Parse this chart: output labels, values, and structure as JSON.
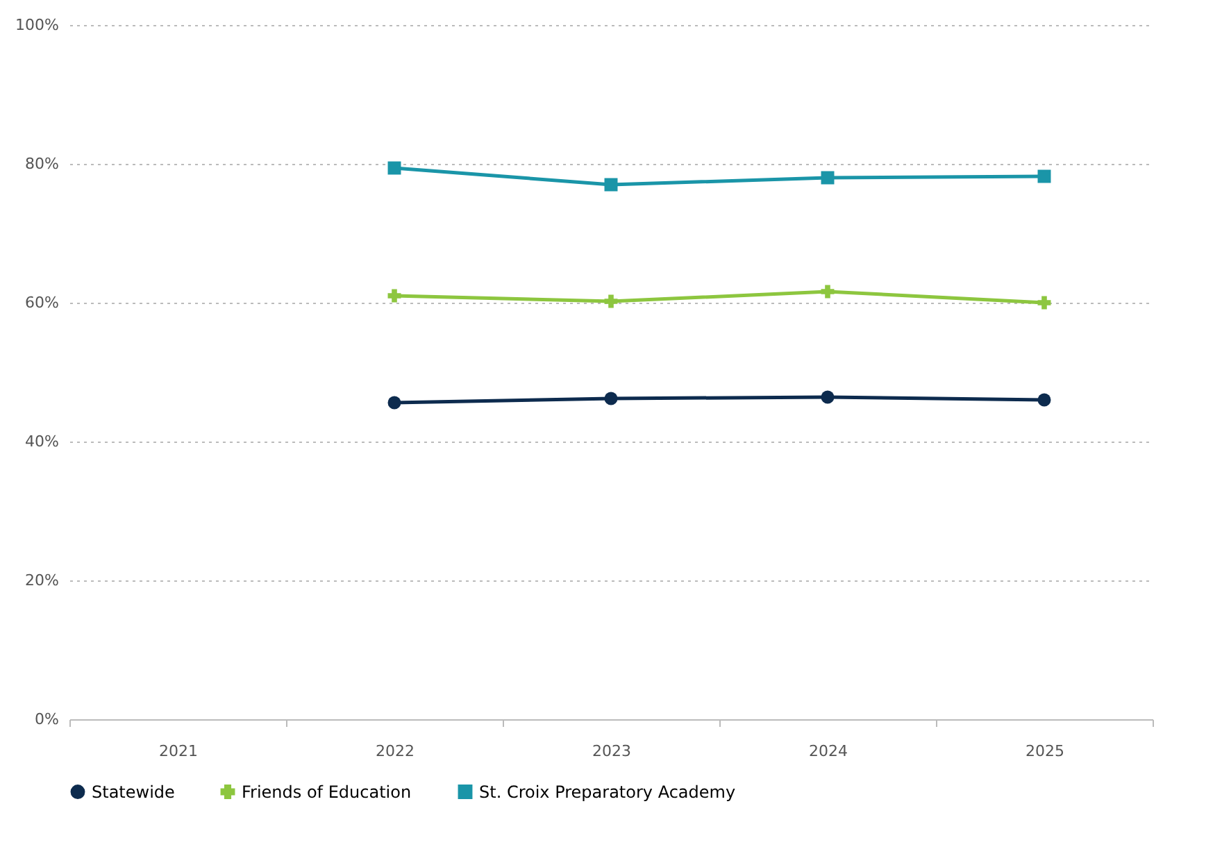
{
  "chart_data": {
    "type": "line",
    "categories": [
      "2021",
      "2022",
      "2023",
      "2024",
      "2025"
    ],
    "series": [
      {
        "name": "Statewide",
        "color": "#0d2b4e",
        "marker": "circle",
        "values": [
          null,
          45.6,
          46.2,
          46.4,
          46
        ]
      },
      {
        "name": "Friends of Education",
        "color": "#8dc63f",
        "marker": "cross",
        "values": [
          null,
          61,
          60.2,
          61.6,
          60
        ]
      },
      {
        "name": "St. Croix Preparatory Academy",
        "color": "#1a95a8",
        "marker": "square",
        "values": [
          null,
          79.4,
          77,
          78,
          78.2
        ]
      }
    ],
    "ylim": [
      0,
      100
    ],
    "yticks": [
      {
        "value": 0,
        "label": "0%"
      },
      {
        "value": 20,
        "label": "20%"
      },
      {
        "value": 40,
        "label": "40%"
      },
      {
        "value": 60,
        "label": "60%"
      },
      {
        "value": 80,
        "label": "80%"
      },
      {
        "value": 100,
        "label": "100%"
      }
    ],
    "grid": "y",
    "legend": "bottom"
  }
}
